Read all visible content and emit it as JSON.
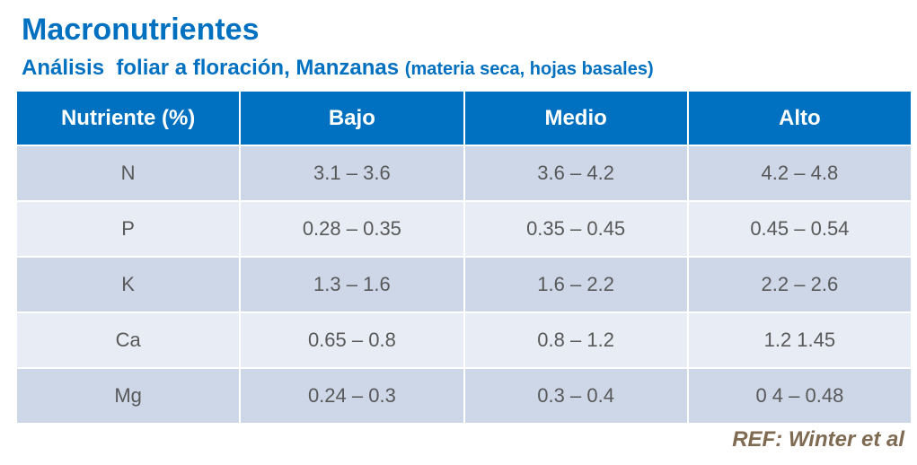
{
  "header": {
    "title": "Macronutrientes",
    "subtitle": "Análisis  foliar a floración, Manzanas",
    "subtitle_note": "(materia seca, hojas basales)"
  },
  "table": {
    "columns": [
      "Nutriente (%)",
      "Bajo",
      "Medio",
      "Alto"
    ],
    "rows": [
      [
        "N",
        "3.1 – 3.6",
        "3.6 – 4.2",
        "4.2 – 4.8"
      ],
      [
        "P",
        "0.28 – 0.35",
        "0.35 – 0.45",
        "0.45 – 0.54"
      ],
      [
        "K",
        "1.3 – 1.6",
        "1.6 – 2.2",
        "2.2 – 2.6"
      ],
      [
        "Ca",
        "0.65 – 0.8",
        "0.8 – 1.2",
        "1.2  1.45"
      ],
      [
        "Mg",
        "0.24 – 0.3",
        "0.3 – 0.4",
        "0 4 – 0.48"
      ]
    ]
  },
  "footer": {
    "reference": "REF: Winter et al"
  }
}
